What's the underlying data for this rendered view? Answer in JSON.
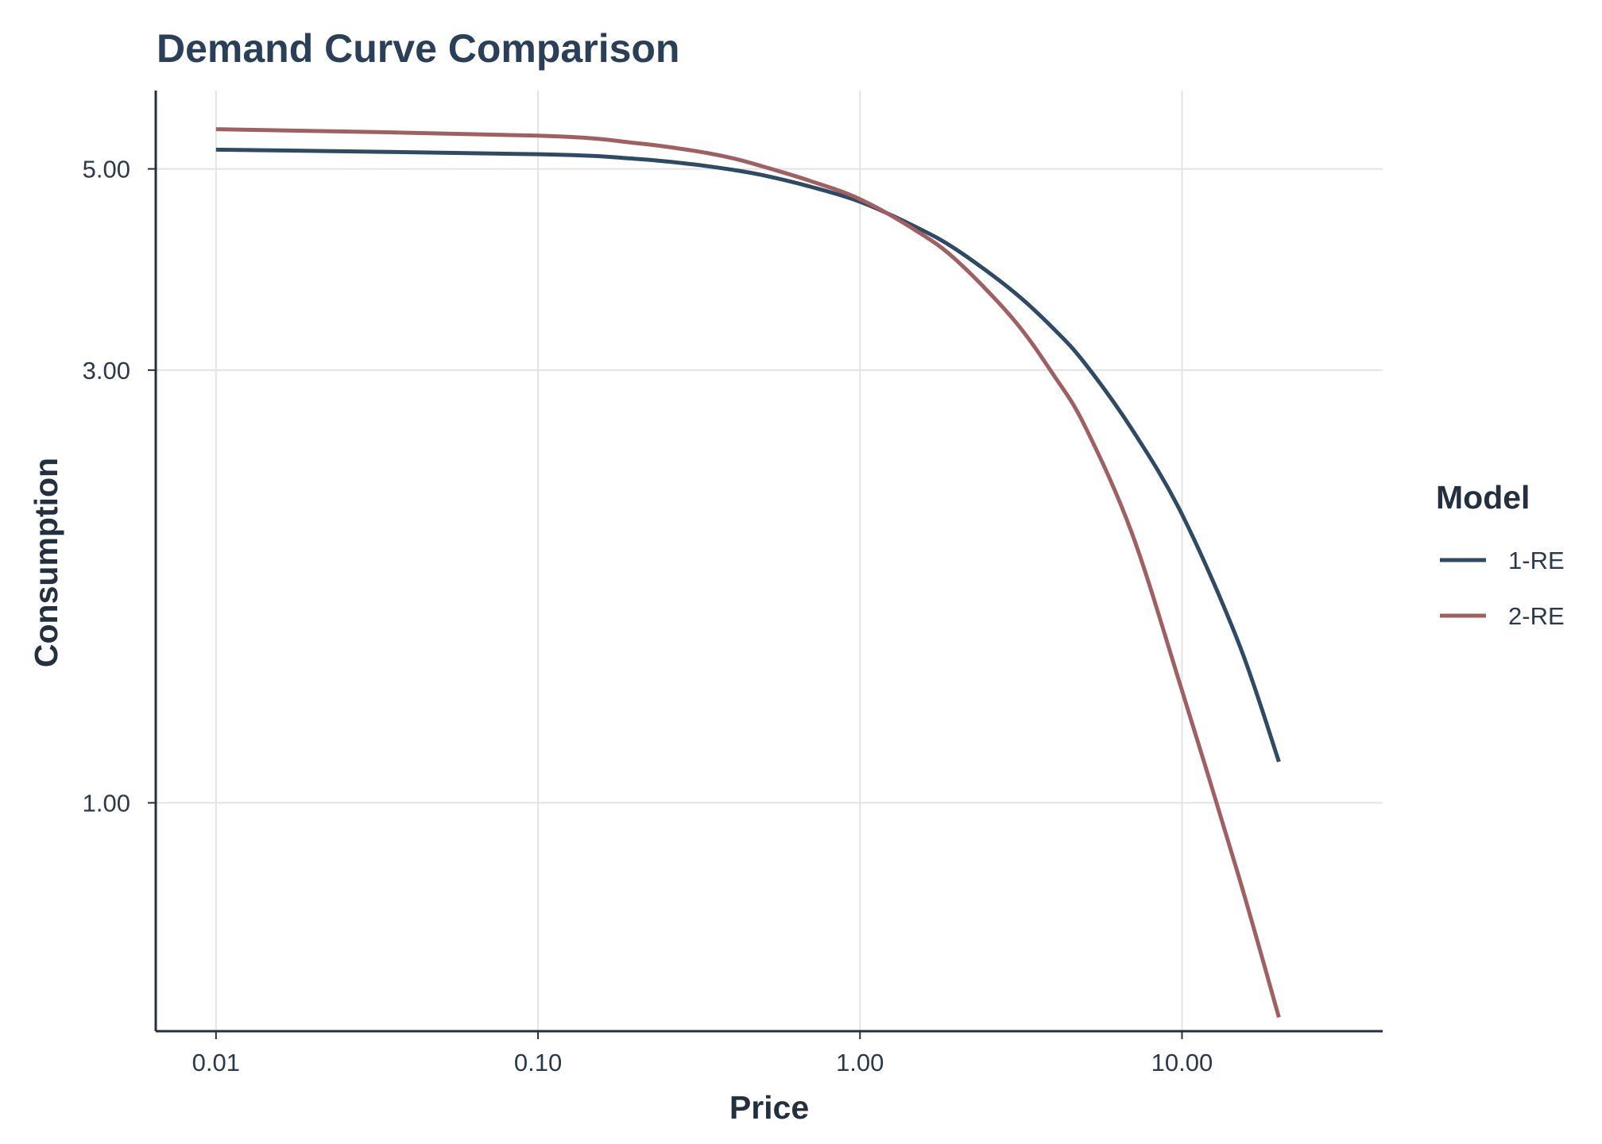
{
  "chart_data": {
    "type": "line",
    "title": "Demand Curve Comparison",
    "xlabel": "Price",
    "ylabel": "Consumption",
    "x_scale": "log",
    "y_scale": "log",
    "xlim": [
      0.0065,
      42
    ],
    "ylim": [
      0.56,
      6.1
    ],
    "x_ticks": [
      0.01,
      0.1,
      1,
      10
    ],
    "x_tick_labels": [
      "0.01",
      "0.10",
      "1.00",
      "10.00"
    ],
    "y_ticks": [
      1,
      3,
      5
    ],
    "y_tick_labels": [
      "1.00",
      "3.00",
      "5.00"
    ],
    "grid": true,
    "legend": {
      "title": "Model",
      "position": "right"
    },
    "colors": {
      "text": "#2a3a4c",
      "grid": "#e3e3e3",
      "axis": "#22303f"
    },
    "series": [
      {
        "name": "1-RE",
        "color": "#2e4a64",
        "points": [
          [
            0.01,
            5.25
          ],
          [
            0.1,
            5.19
          ],
          [
            0.2,
            5.13
          ],
          [
            0.3,
            5.06
          ],
          [
            0.4,
            4.99
          ],
          [
            0.5,
            4.92
          ],
          [
            0.7,
            4.78
          ],
          [
            1.0,
            4.6
          ],
          [
            1.5,
            4.31
          ],
          [
            2,
            4.07
          ],
          [
            3,
            3.66
          ],
          [
            4,
            3.33
          ],
          [
            5,
            3.05
          ],
          [
            7,
            2.58
          ],
          [
            10,
            2.08
          ],
          [
            15,
            1.5
          ],
          [
            20,
            1.11
          ]
        ]
      },
      {
        "name": "2-RE",
        "color": "#a05f61",
        "points": [
          [
            0.01,
            5.53
          ],
          [
            0.1,
            5.44
          ],
          [
            0.2,
            5.34
          ],
          [
            0.3,
            5.24
          ],
          [
            0.4,
            5.14
          ],
          [
            0.5,
            5.03
          ],
          [
            0.7,
            4.85
          ],
          [
            1.0,
            4.63
          ],
          [
            1.5,
            4.27
          ],
          [
            2,
            3.96
          ],
          [
            3,
            3.41
          ],
          [
            4,
            2.96
          ],
          [
            5,
            2.6
          ],
          [
            7,
            1.98
          ],
          [
            10,
            1.33
          ],
          [
            15,
            0.83
          ],
          [
            20,
            0.58
          ]
        ]
      }
    ]
  }
}
